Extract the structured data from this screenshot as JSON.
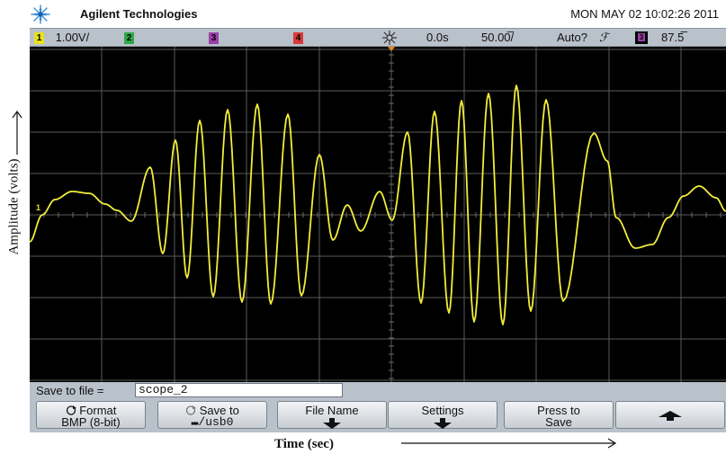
{
  "header": {
    "brand": "Agilent Technologies",
    "datetime": "MON MAY 02 10:02:26 2011",
    "logo_icon": "agilent-spark-icon"
  },
  "status": {
    "ch1_num": "1",
    "ch1_scale": "1.00V/",
    "ch2_num": "2",
    "ch3_num": "3",
    "ch4_num": "4",
    "run_icon": "sun-icon",
    "time_delay": "0.0s",
    "time_scale": "50.00̅/",
    "trigger_mode": "Auto?",
    "trigger_slope": "ℱ",
    "trig_ch_num": "3",
    "trig_level": "87.5̅",
    "colors": {
      "ch1": "#e8e020",
      "ch2": "#2ea84a",
      "ch3": "#9c3fa8",
      "ch4": "#d83a3a"
    }
  },
  "axes": {
    "y_label": "Amplitude  (volts)",
    "x_label": "Time (sec)",
    "ground_marker": "1"
  },
  "save": {
    "label": "Save to file =",
    "value": "scope_2"
  },
  "softkeys": [
    {
      "line1": "Format",
      "line2": "BMP (8-bit)",
      "icon": "rotate-knob-icon"
    },
    {
      "line1": "Save to",
      "line2": "▬/usb0",
      "icon": "rotate-knob-icon"
    },
    {
      "line1": "File Name",
      "icon": "arrow-down-icon"
    },
    {
      "line1": "Settings",
      "icon": "arrow-down-icon"
    },
    {
      "line1": "Press to",
      "line2": "Save"
    },
    {
      "icon": "arrow-up-icon"
    }
  ],
  "trace_color": "#f2ec3a"
}
